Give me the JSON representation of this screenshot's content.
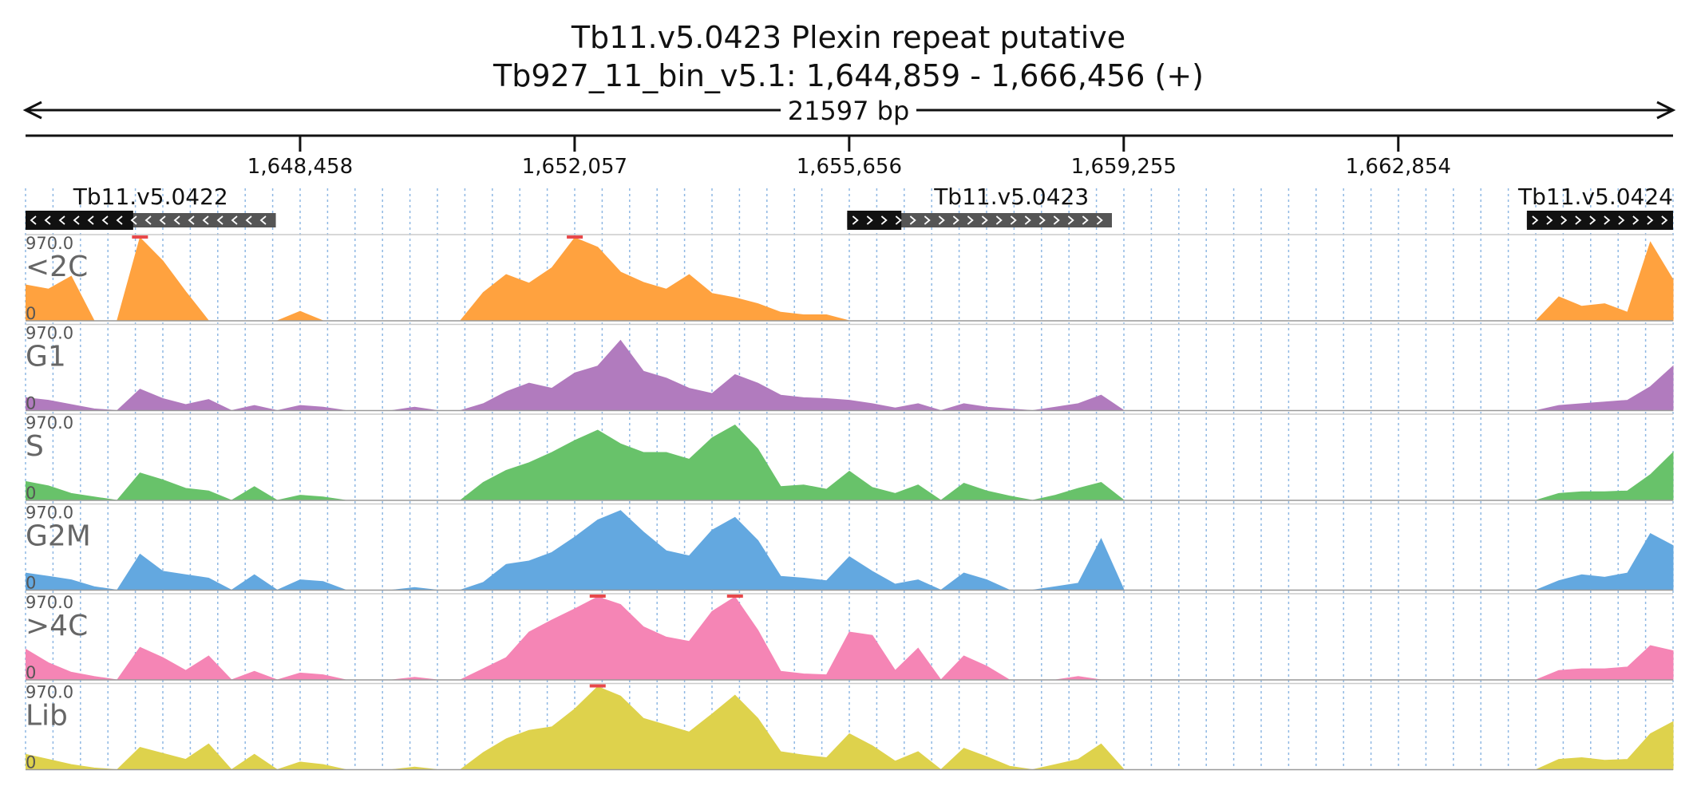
{
  "title": {
    "gene_label": "Tb11.v5.0423  Plexin repeat  putative",
    "region": "Tb927_11_bin_v5.1: 1,644,859 - 1,666,456 (+)"
  },
  "region": {
    "start": 1644859,
    "end": 1666456
  },
  "ruler": {
    "span_label": "21597 bp",
    "ticks": [
      {
        "pos": 1648458,
        "label": "1,648,458"
      },
      {
        "pos": 1652057,
        "label": "1,652,057"
      },
      {
        "pos": 1655656,
        "label": "1,655,656"
      },
      {
        "pos": 1659255,
        "label": "1,659,255"
      },
      {
        "pos": 1662854,
        "label": "1,662,854"
      }
    ]
  },
  "genes": [
    {
      "name": "Tb11.v5.0422",
      "start": 1644859,
      "end": 1648140,
      "strand": "-",
      "cds_start": 1644859,
      "cds_end": 1646270
    },
    {
      "name": "Tb11.v5.0423",
      "start": 1655630,
      "end": 1659100,
      "strand": "+",
      "cds_start": 1655630,
      "cds_end": 1656340
    },
    {
      "name": "Tb11.v5.0424",
      "start": 1664540,
      "end": 1666456,
      "strand": "+",
      "cds_start": 1664540,
      "cds_end": 1666456
    }
  ],
  "tracks": [
    {
      "name": "<2C",
      "color": "#FFA23F",
      "max_label": "970.0",
      "min_label": "0"
    },
    {
      "name": "G1",
      "color": "#B17BBE",
      "max_label": "970.0",
      "min_label": "0"
    },
    {
      "name": "S",
      "color": "#68C26A",
      "max_label": "970.0",
      "min_label": "0"
    },
    {
      "name": "G2M",
      "color": "#63A8E0",
      "max_label": "970.0",
      "min_label": "0"
    },
    {
      "name": ">4C",
      "color": "#F585B5",
      "max_label": "970.0",
      "min_label": "0"
    },
    {
      "name": "Lib",
      "color": "#DED24C",
      "max_label": "970.0",
      "min_label": "0"
    }
  ],
  "clip_color": "#E8484A",
  "chart_data": {
    "type": "area",
    "x_unit": "bp",
    "ylim": [
      0,
      970.0
    ],
    "x": [
      1644859,
      1645159,
      1645459,
      1645759,
      1646059,
      1646359,
      1646659,
      1646959,
      1647259,
      1647559,
      1647859,
      1648159,
      1648459,
      1648759,
      1649059,
      1649359,
      1649659,
      1649959,
      1650259,
      1650559,
      1650859,
      1651159,
      1651459,
      1651759,
      1652059,
      1652359,
      1652659,
      1652959,
      1653259,
      1653559,
      1653859,
      1654159,
      1654459,
      1654759,
      1655059,
      1655359,
      1655659,
      1655959,
      1656259,
      1656559,
      1656859,
      1657159,
      1657459,
      1657759,
      1658059,
      1658359,
      1658659,
      1658959,
      1659259,
      1659559,
      1659859,
      1660159,
      1660459,
      1660759,
      1661059,
      1661359,
      1661659,
      1661959,
      1662259,
      1662559,
      1662859,
      1663159,
      1663459,
      1663759,
      1664059,
      1664359,
      1664659,
      1664959,
      1665259,
      1665559,
      1665859,
      1666159,
      1666456
    ],
    "series": [
      {
        "name": "<2C",
        "values": [
          420,
          370,
          520,
          0,
          0,
          970,
          700,
          340,
          0,
          0,
          0,
          0,
          110,
          0,
          0,
          0,
          0,
          0,
          0,
          0,
          330,
          540,
          440,
          620,
          970,
          860,
          570,
          450,
          370,
          540,
          320,
          270,
          200,
          100,
          70,
          70,
          0,
          0,
          0,
          0,
          0,
          0,
          0,
          0,
          0,
          0,
          0,
          0,
          0,
          0,
          0,
          0,
          0,
          0,
          0,
          0,
          0,
          0,
          0,
          0,
          0,
          0,
          0,
          0,
          0,
          0,
          0,
          280,
          170,
          200,
          100,
          920,
          480
        ]
      },
      {
        "name": "G1",
        "values": [
          150,
          120,
          70,
          20,
          0,
          250,
          140,
          70,
          130,
          0,
          60,
          0,
          60,
          40,
          0,
          0,
          0,
          40,
          0,
          0,
          80,
          220,
          320,
          260,
          440,
          520,
          820,
          460,
          380,
          260,
          200,
          420,
          320,
          180,
          150,
          140,
          120,
          80,
          30,
          80,
          0,
          80,
          40,
          20,
          0,
          40,
          80,
          180,
          0,
          0,
          0,
          0,
          0,
          0,
          0,
          0,
          0,
          0,
          0,
          0,
          0,
          0,
          0,
          0,
          0,
          0,
          0,
          60,
          80,
          100,
          120,
          280,
          520
        ]
      },
      {
        "name": "S",
        "values": [
          220,
          170,
          80,
          40,
          0,
          320,
          240,
          140,
          110,
          0,
          160,
          0,
          60,
          40,
          0,
          0,
          0,
          0,
          0,
          0,
          210,
          350,
          440,
          560,
          700,
          820,
          660,
          560,
          560,
          480,
          730,
          880,
          600,
          160,
          180,
          130,
          340,
          150,
          80,
          180,
          0,
          200,
          110,
          50,
          0,
          60,
          140,
          210,
          0,
          0,
          0,
          0,
          0,
          0,
          0,
          0,
          0,
          0,
          0,
          0,
          0,
          0,
          0,
          0,
          0,
          0,
          0,
          80,
          100,
          100,
          110,
          300,
          560
        ]
      },
      {
        "name": "G2M",
        "values": [
          200,
          160,
          120,
          40,
          0,
          420,
          220,
          180,
          140,
          0,
          180,
          0,
          120,
          100,
          0,
          0,
          0,
          30,
          0,
          0,
          90,
          300,
          340,
          440,
          620,
          820,
          930,
          680,
          460,
          400,
          700,
          850,
          580,
          160,
          140,
          110,
          390,
          220,
          70,
          120,
          0,
          200,
          120,
          0,
          0,
          40,
          80,
          600,
          0,
          0,
          0,
          0,
          0,
          0,
          0,
          0,
          0,
          0,
          0,
          0,
          0,
          0,
          0,
          0,
          0,
          0,
          0,
          110,
          180,
          150,
          200,
          660,
          520
        ]
      },
      {
        "name": ">4C",
        "values": [
          360,
          200,
          90,
          40,
          0,
          380,
          260,
          110,
          280,
          0,
          100,
          0,
          80,
          60,
          0,
          0,
          0,
          30,
          0,
          0,
          130,
          260,
          560,
          700,
          830,
          970,
          880,
          620,
          500,
          450,
          800,
          970,
          580,
          100,
          70,
          60,
          560,
          520,
          110,
          370,
          0,
          280,
          160,
          0,
          0,
          0,
          40,
          0,
          0,
          0,
          0,
          0,
          0,
          0,
          0,
          0,
          0,
          0,
          0,
          0,
          0,
          0,
          0,
          0,
          0,
          0,
          0,
          110,
          130,
          130,
          150,
          400,
          340
        ]
      },
      {
        "name": "Lib",
        "values": [
          180,
          120,
          60,
          20,
          0,
          260,
          190,
          120,
          300,
          0,
          180,
          0,
          90,
          60,
          0,
          0,
          0,
          30,
          0,
          0,
          200,
          360,
          460,
          500,
          710,
          970,
          860,
          600,
          520,
          440,
          650,
          870,
          600,
          210,
          170,
          140,
          420,
          280,
          100,
          210,
          0,
          250,
          150,
          40,
          0,
          60,
          120,
          300,
          0,
          0,
          0,
          0,
          0,
          0,
          0,
          0,
          0,
          0,
          0,
          0,
          0,
          0,
          0,
          0,
          0,
          0,
          0,
          120,
          140,
          110,
          120,
          420,
          560
        ]
      }
    ]
  }
}
